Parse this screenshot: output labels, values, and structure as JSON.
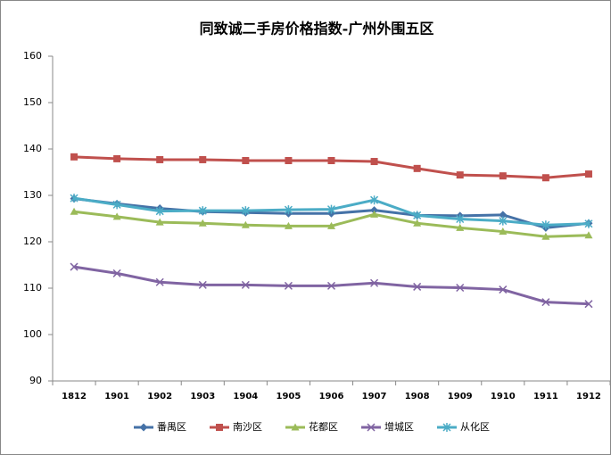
{
  "chart_data": {
    "type": "line",
    "title": "同致诚二手房价格指数-广州外围五区",
    "categories": [
      "1812",
      "1901",
      "1902",
      "1903",
      "1904",
      "1905",
      "1906",
      "1907",
      "1908",
      "1909",
      "1910",
      "1911",
      "1912"
    ],
    "series": [
      {
        "name": "番禺区",
        "color": "#4572a7",
        "marker": "diamond",
        "values": [
          129.3,
          128.2,
          127.2,
          126.5,
          126.3,
          126.1,
          126.1,
          126.8,
          125.7,
          125.6,
          125.8,
          123.0,
          124.0
        ]
      },
      {
        "name": "南沙区",
        "color": "#c0504d",
        "marker": "square",
        "values": [
          138.3,
          137.9,
          137.7,
          137.7,
          137.5,
          137.5,
          137.5,
          137.3,
          135.8,
          134.4,
          134.2,
          133.8,
          134.6
        ]
      },
      {
        "name": "花都区",
        "color": "#9bbb59",
        "marker": "triangle",
        "values": [
          126.5,
          125.4,
          124.2,
          124.0,
          123.6,
          123.4,
          123.4,
          125.9,
          124.0,
          123.0,
          122.2,
          121.1,
          121.4
        ]
      },
      {
        "name": "增城区",
        "color": "#8064a2",
        "marker": "x",
        "values": [
          114.6,
          113.2,
          111.3,
          110.7,
          110.7,
          110.5,
          110.5,
          111.1,
          110.3,
          110.1,
          109.7,
          107.0,
          106.6
        ]
      },
      {
        "name": "从化区",
        "color": "#4bacc6",
        "marker": "star",
        "values": [
          129.4,
          128.0,
          126.6,
          126.7,
          126.7,
          126.9,
          127.0,
          129.0,
          125.7,
          124.9,
          124.5,
          123.6,
          123.9
        ]
      }
    ],
    "ylim": [
      90,
      160
    ],
    "yticks": [
      90,
      100,
      110,
      120,
      130,
      140,
      150,
      160
    ],
    "grid": false,
    "legend": "bottom"
  }
}
